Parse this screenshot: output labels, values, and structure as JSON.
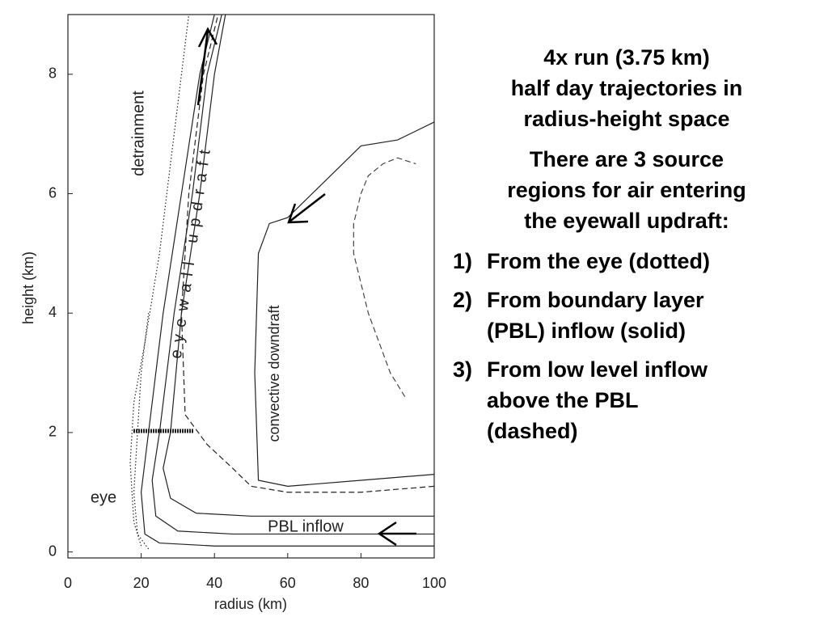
{
  "chart_data": {
    "type": "line",
    "x_label": "radius (km)",
    "y_label": "height (km)",
    "xlim": [
      0,
      100
    ],
    "ylim": [
      -0.1,
      9
    ],
    "xticks": [
      0,
      20,
      40,
      60,
      80,
      100
    ],
    "yticks": [
      0,
      2,
      4,
      6,
      8
    ],
    "annotations": [
      "detrainment",
      "eyewall updraft",
      "convective downdraft",
      "eye",
      "PBL inflow"
    ],
    "series": [
      {
        "color": "#222222",
        "style": "solid",
        "x": [
          100,
          70,
          40,
          25,
          21,
          20,
          22,
          26,
          31,
          36,
          40
        ],
        "values": [
          0.1,
          0.1,
          0.1,
          0.15,
          0.3,
          1,
          2,
          4,
          6,
          8,
          9
        ]
      },
      {
        "color": "#222222",
        "style": "solid",
        "x": [
          100,
          70,
          45,
          30,
          24,
          23,
          25,
          29,
          34,
          38,
          42
        ],
        "values": [
          0.3,
          0.3,
          0.3,
          0.35,
          0.6,
          1.2,
          2,
          4,
          6,
          8,
          9
        ]
      },
      {
        "color": "#222222",
        "style": "solid",
        "x": [
          100,
          70,
          50,
          35,
          28,
          26,
          28,
          31,
          36,
          40,
          43
        ],
        "values": [
          0.6,
          0.6,
          0.6,
          0.65,
          0.9,
          1.4,
          2,
          4,
          6,
          8,
          9
        ]
      },
      {
        "color": "#222222",
        "style": "solid",
        "x": [
          100,
          80,
          60,
          52,
          51,
          52,
          55,
          60,
          70,
          80,
          90,
          100
        ],
        "values": [
          1.3,
          1.2,
          1.1,
          1.2,
          3,
          5,
          5.5,
          5.6,
          6.2,
          6.8,
          6.9,
          7.2
        ]
      },
      {
        "color": "#222222",
        "style": "dashed",
        "x": [
          100,
          80,
          60,
          50,
          45,
          38,
          32,
          31,
          33,
          37,
          41
        ],
        "values": [
          1.1,
          1.0,
          1.0,
          1.1,
          1.4,
          1.8,
          2.3,
          4,
          6,
          8,
          9
        ]
      },
      {
        "color": "#444444",
        "style": "dashed",
        "x": [
          92,
          88,
          85,
          82,
          80,
          78,
          78,
          80,
          82,
          86,
          90,
          95
        ],
        "values": [
          2.6,
          3,
          3.5,
          4,
          4.5,
          5,
          5.5,
          6,
          6.3,
          6.5,
          6.6,
          6.5
        ]
      },
      {
        "color": "#222222",
        "style": "dotted",
        "x": [
          20,
          18,
          17,
          18,
          21,
          25,
          29,
          33
        ],
        "values": [
          0.1,
          0.5,
          1.5,
          2.5,
          3.5,
          5,
          7,
          9
        ]
      },
      {
        "color": "#222222",
        "style": "dotted",
        "x": [
          22,
          19,
          18,
          19,
          20,
          22
        ],
        "values": [
          0.05,
          0.3,
          1,
          2,
          3,
          4
        ]
      }
    ]
  },
  "text_panel": {
    "title_lines": [
      "4x run (3.75 km)",
      "half day trajectories in",
      "radius-height space"
    ],
    "intro_lines": [
      "There are 3 source",
      "regions for air entering",
      "the eyewall updraft:"
    ],
    "items": [
      {
        "number": "1)",
        "lines": [
          "From the eye (dotted)"
        ]
      },
      {
        "number": "2)",
        "lines": [
          "From boundary layer",
          "(PBL) inflow (solid)"
        ]
      },
      {
        "number": "3)",
        "lines": [
          "From low level inflow",
          "above the PBL",
          "(dashed)"
        ]
      }
    ]
  }
}
